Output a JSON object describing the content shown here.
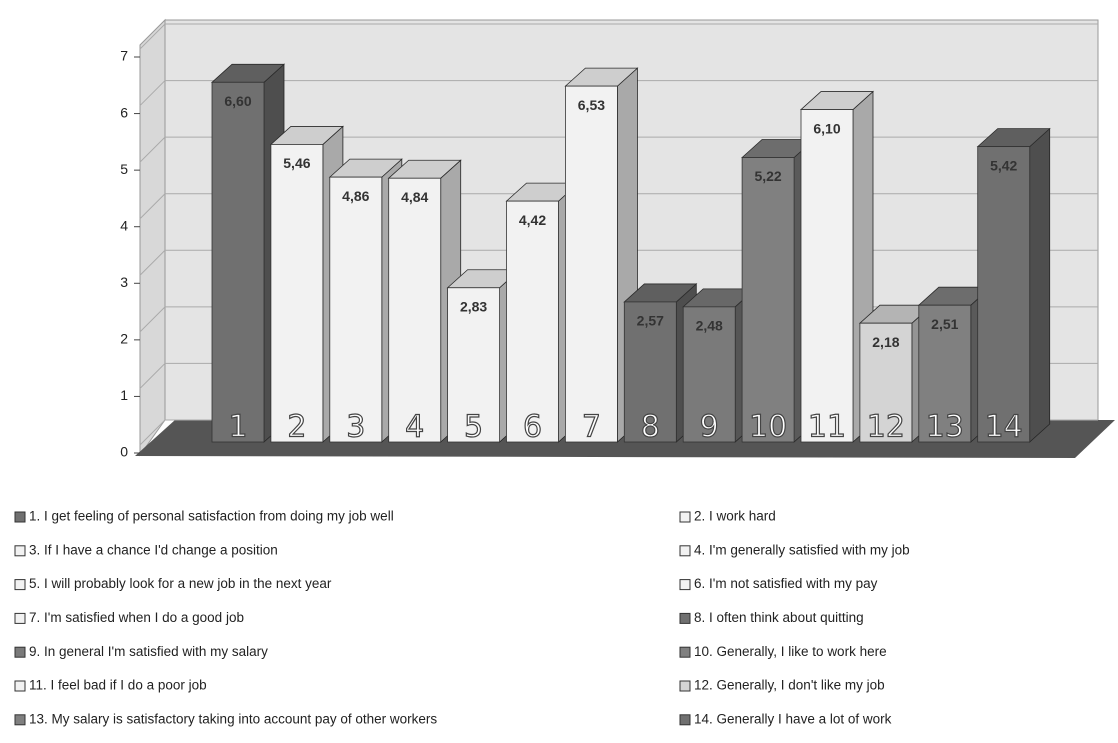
{
  "chart_data": {
    "type": "bar3d",
    "categories": [
      "1",
      "2",
      "3",
      "4",
      "5",
      "6",
      "7",
      "8",
      "9",
      "10",
      "11",
      "12",
      "13",
      "14"
    ],
    "values": [
      6.6,
      5.46,
      4.86,
      4.84,
      2.83,
      4.42,
      6.53,
      2.57,
      2.48,
      5.22,
      6.1,
      2.18,
      2.51,
      5.42
    ],
    "value_labels": [
      "6,60",
      "5,46",
      "4,86",
      "4,84",
      "2,83",
      "4,42",
      "6,53",
      "2,57",
      "2,48",
      "5,22",
      "6,10",
      "2,18",
      "2,51",
      "5,42"
    ],
    "colors": [
      "#707070",
      "#f2f2f2",
      "#f2f2f2",
      "#f2f2f2",
      "#f2f2f2",
      "#f2f2f2",
      "#f2f2f2",
      "#707070",
      "#7a7a7a",
      "#808080",
      "#f2f2f2",
      "#d4d4d4",
      "#808080",
      "#707070"
    ],
    "legend": [
      "1. I get feeling of personal satisfaction from doing my job well",
      "2. I work hard",
      "3. If I have a chance  I'd change a position",
      "4. I'm generally satisfied with my job",
      "5. I will probably look for a new job in the next year",
      "6. I'm not satisfied with my pay",
      "7. I'm satisfied when I do a good job",
      "8. I often think about quitting",
      "9. In general I'm satisfied with my salary",
      "10. Generally, I like to work here",
      "11. I feel bad if I do a poor job",
      "12. Generally, I don't like my job",
      "13. My salary is satisfactory taking into account pay of other workers",
      "14. Generally I have a lot of work"
    ],
    "ylim": [
      0,
      7
    ],
    "yticks": [
      0,
      1,
      2,
      3,
      4,
      5,
      6,
      7
    ],
    "grid": true
  }
}
